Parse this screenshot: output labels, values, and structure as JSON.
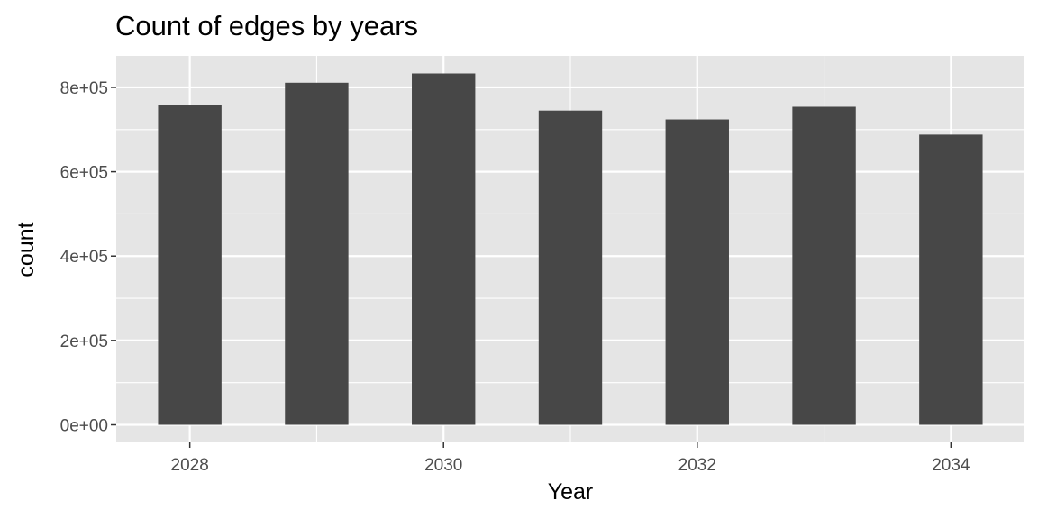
{
  "chart_data": {
    "type": "bar",
    "title": "Count of edges by years",
    "xlabel": "Year",
    "ylabel": "count",
    "x": [
      2028,
      2029,
      2030,
      2031,
      2032,
      2033,
      2034
    ],
    "values": [
      758000,
      811000,
      833000,
      745000,
      724000,
      754000,
      688000
    ],
    "xlim": [
      2027.42,
      2034.58
    ],
    "ylim": [
      -41650,
      874650
    ],
    "x_ticks": [
      2028,
      2030,
      2032,
      2034
    ],
    "x_tick_labels": [
      "2028",
      "2030",
      "2032",
      "2034"
    ],
    "y_ticks": [
      0,
      200000,
      400000,
      600000,
      800000
    ],
    "y_tick_labels": [
      "0e+00",
      "2e+05",
      "4e+05",
      "6e+05",
      "8e+05"
    ],
    "grid": true,
    "legend": "none"
  },
  "colors": {
    "panel_background": "#e5e5e5",
    "grid_line": "#ffffff",
    "bar_fill": "#474747",
    "tick_text": "#4d4d4d",
    "tick_mark": "#333333"
  }
}
